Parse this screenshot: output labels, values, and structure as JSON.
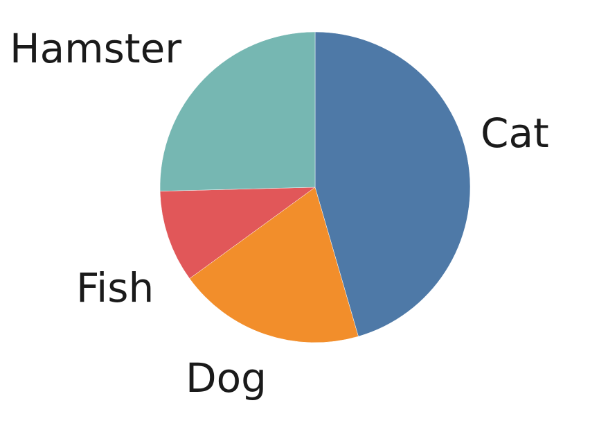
{
  "chart_data": {
    "type": "pie",
    "title": "",
    "slices": [
      {
        "label": "Cat",
        "value": 45.5,
        "color": "#4e79a7"
      },
      {
        "label": "Dog",
        "value": 19.5,
        "color": "#f28e2b"
      },
      {
        "label": "Fish",
        "value": 9.6,
        "color": "#e15759"
      },
      {
        "label": "Hamster",
        "value": 25.4,
        "color": "#76b7b2"
      }
    ],
    "start_angle_deg": 0,
    "direction": "clockwise",
    "legend": "none",
    "labels": "outside-slices"
  }
}
